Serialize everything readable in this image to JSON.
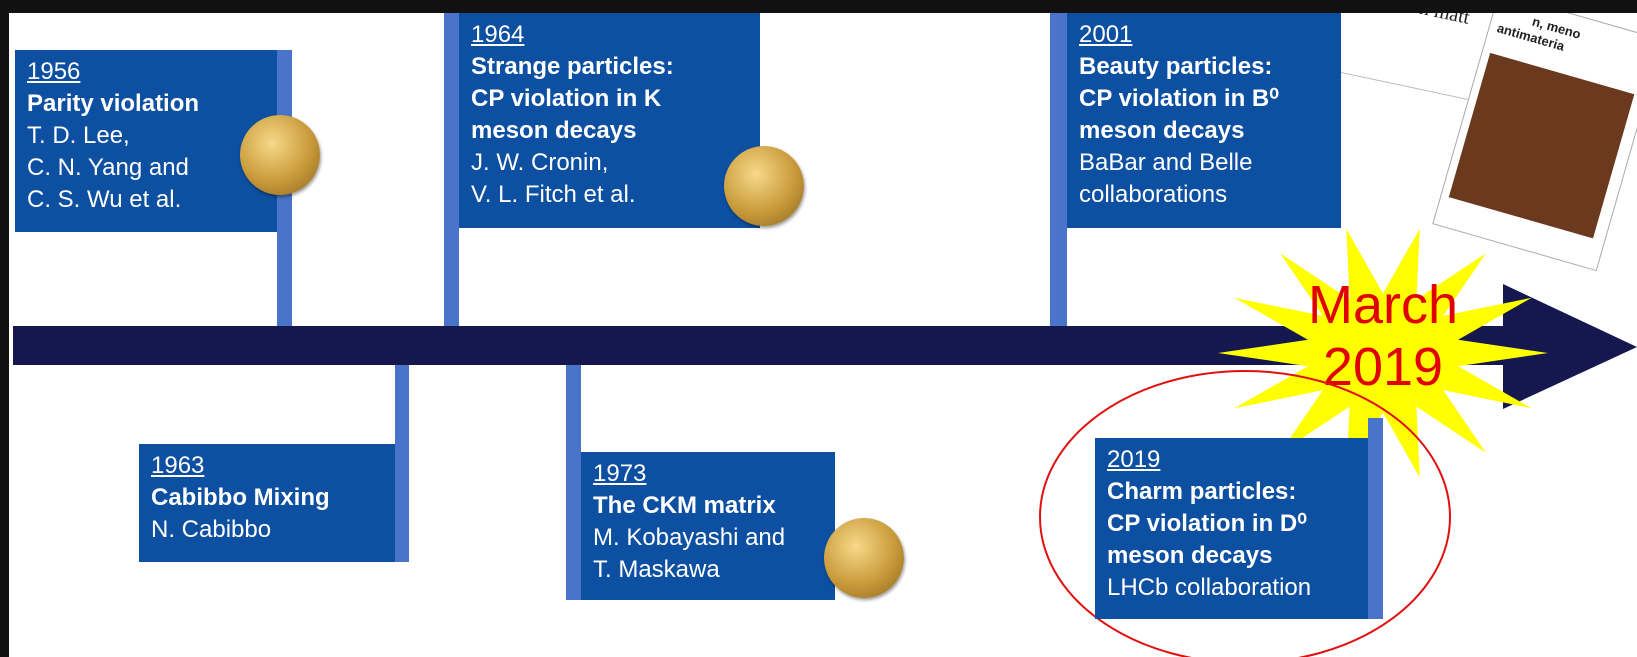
{
  "events": [
    {
      "year": "1956",
      "bold": [
        "Parity violation"
      ],
      "lines": [
        "T. D. Lee,",
        "C. N. Yang and",
        "C. S. Wu et al."
      ]
    },
    {
      "year": "1964",
      "bold": [
        "Strange particles:",
        "CP violation in K",
        "meson decays"
      ],
      "lines": [
        "J. W. Cronin,",
        "V. L. Fitch et al."
      ]
    },
    {
      "year": "2001",
      "bold": [
        "Beauty particles:",
        "CP violation in B⁰",
        "meson decays"
      ],
      "lines": [
        "BaBar and Belle",
        "collaborations"
      ]
    },
    {
      "year": "1963",
      "bold": [
        "Cabibbo Mixing"
      ],
      "lines": [
        "N. Cabibbo"
      ]
    },
    {
      "year": "1973",
      "bold": [
        "The CKM matrix"
      ],
      "lines": [
        "M. Kobayashi and",
        "T. Maskawa"
      ]
    },
    {
      "year": "2019",
      "bold": [
        "Charm particles:",
        "CP violation in D⁰",
        "meson decays"
      ],
      "lines": [
        "LHCb collaboration"
      ]
    }
  ],
  "highlight": {
    "line1": "March",
    "line2": "2019"
  },
  "clippings": [
    "between matt",
    "n, meno",
    "antimateria"
  ]
}
